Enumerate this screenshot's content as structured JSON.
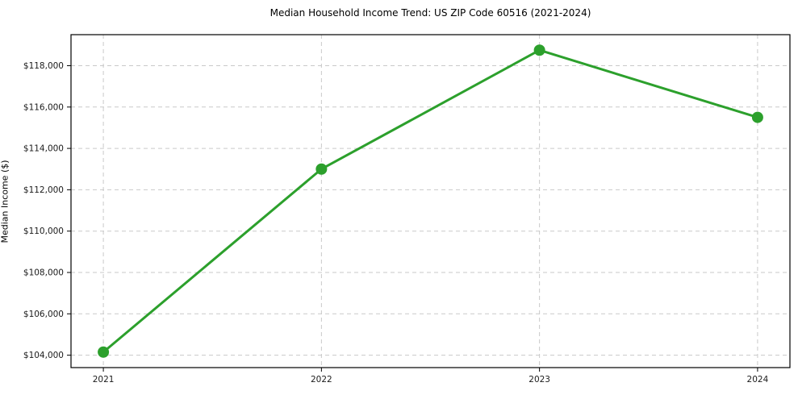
{
  "chart_data": {
    "type": "line",
    "title": "Median Household Income Trend: US ZIP Code 60516 (2021-2024)",
    "xlabel": "",
    "ylabel": "Median Income ($)",
    "categories": [
      "2021",
      "2022",
      "2023",
      "2024"
    ],
    "values": [
      104150,
      113000,
      118750,
      115500
    ],
    "ytick_values": [
      104000,
      106000,
      108000,
      110000,
      112000,
      114000,
      116000,
      118000
    ],
    "ytick_labels": [
      "$104,000",
      "$106,000",
      "$108,000",
      "$110,000",
      "$112,000",
      "$114,000",
      "$116,000",
      "$118,000"
    ],
    "ylim": [
      103400,
      119500
    ],
    "grid": "dashed, both axes",
    "legend": "none",
    "colors": {
      "line": "#2ca02c",
      "marker": "#2ca02c",
      "grid": "#c9c9c9",
      "axis": "#000000",
      "tick_text": "#1a1a1a",
      "background": "#ffffff"
    }
  }
}
